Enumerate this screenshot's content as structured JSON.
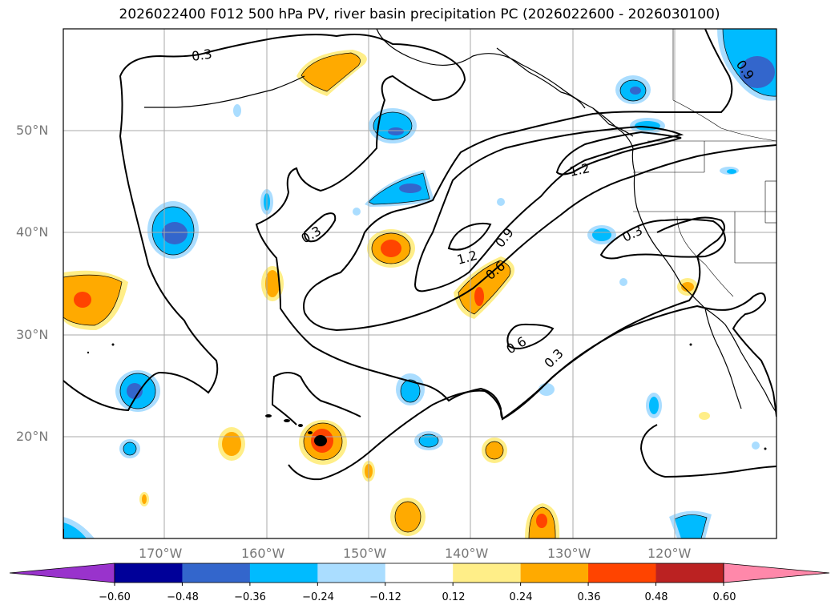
{
  "title": "2026022400 F012 500 hPa PV, river basin precipitation PC (2026022600 - 2026030100)",
  "lat_labels": [
    "50°N",
    "40°N",
    "30°N",
    "20°N"
  ],
  "lon_labels": [
    "170°W",
    "160°W",
    "150°W",
    "140°W",
    "130°W",
    "120°W"
  ],
  "contour_labels": [
    "0.3",
    "0.3",
    "0.3",
    "0.3",
    "0.6",
    "0.6",
    "0.9",
    "0.9",
    "1.2",
    "1.2"
  ],
  "colorbar": {
    "ticks": [
      "−0.60",
      "−0.48",
      "−0.36",
      "−0.24",
      "−0.12",
      "0.12",
      "0.24",
      "0.36",
      "0.48",
      "0.60"
    ],
    "colors": [
      "#9933cc",
      "#000099",
      "#3366cc",
      "#00bbff",
      "#aaddff",
      "#ffffff",
      "#ffee88",
      "#ffaa00",
      "#ff4400",
      "#bb2222",
      "#ff88aa"
    ]
  },
  "palette": {
    "neg_light": "#aaddff",
    "neg_mid": "#00bbff",
    "neg_dark": "#3366cc",
    "pos_light": "#ffee88",
    "pos_mid": "#ffaa00",
    "pos_dark": "#ff4400"
  }
}
